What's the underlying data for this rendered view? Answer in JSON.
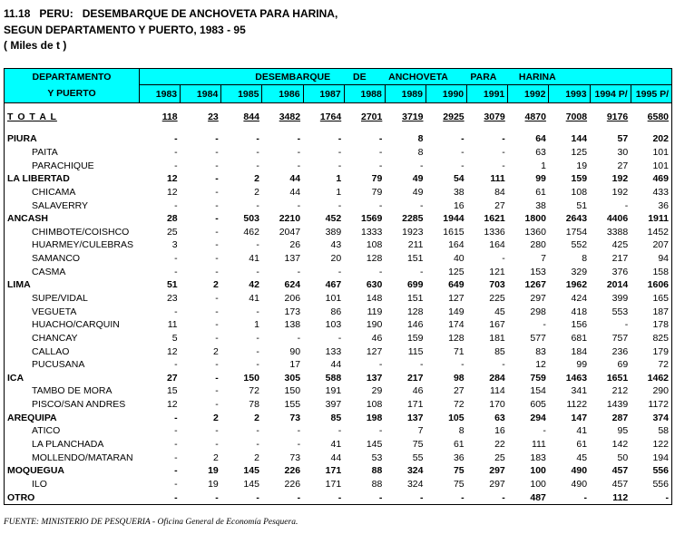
{
  "title": {
    "line1": "11.18   PERU:   DESEMBARQUE DE ANCHOVETA PARA HARINA,",
    "line2": "SEGUN DEPARTAMENTO Y PUERTO, 1983 - 95",
    "line3": "( Miles de t )"
  },
  "table": {
    "header": {
      "label_line1": "DEPARTAMENTO",
      "label_line2": "Y  PUERTO",
      "group": "DESEMBARQUE DE ANCHOVETA PARA HARINA",
      "years": [
        "1983",
        "1984",
        "1985",
        "1986",
        "1987",
        "1988",
        "1989",
        "1990",
        "1991",
        "1992",
        "1993",
        "1994 P/",
        "1995 P/"
      ]
    },
    "total": {
      "name": "T O T A L",
      "values": [
        118,
        23,
        844,
        3482,
        1764,
        2701,
        3719,
        2925,
        3079,
        4870,
        7008,
        9176,
        6580
      ]
    },
    "departments": [
      {
        "name": "PIURA",
        "values": [
          "-",
          "-",
          "-",
          "-",
          "-",
          "-",
          8,
          "-",
          "-",
          64,
          144,
          57,
          202
        ],
        "ports": [
          {
            "name": "PAITA",
            "values": [
              "-",
              "-",
              "-",
              "-",
              "-",
              "-",
              8,
              "-",
              "-",
              63,
              125,
              30,
              101
            ]
          },
          {
            "name": "PARACHIQUE",
            "values": [
              "-",
              "-",
              "-",
              "-",
              "-",
              "-",
              "-",
              "-",
              "-",
              1,
              19,
              27,
              101
            ]
          }
        ]
      },
      {
        "name": "LA LIBERTAD",
        "values": [
          12,
          "-",
          2,
          44,
          1,
          79,
          49,
          54,
          111,
          99,
          159,
          192,
          469
        ],
        "ports": [
          {
            "name": "CHICAMA",
            "values": [
              12,
              "-",
              2,
              44,
              1,
              79,
              49,
              38,
              84,
              61,
              108,
              192,
              433
            ]
          },
          {
            "name": "SALAVERRY",
            "values": [
              "-",
              "-",
              "-",
              "-",
              "-",
              "-",
              "-",
              16,
              27,
              38,
              51,
              "-",
              36
            ]
          }
        ]
      },
      {
        "name": "ANCASH",
        "values": [
          28,
          "-",
          503,
          2210,
          452,
          1569,
          2285,
          1944,
          1621,
          1800,
          2643,
          4406,
          1911
        ],
        "ports": [
          {
            "name": "CHIMBOTE/COISHCO",
            "values": [
              25,
              "-",
              462,
              2047,
              389,
              1333,
              1923,
              1615,
              1336,
              1360,
              1754,
              3388,
              1452
            ]
          },
          {
            "name": "HUARMEY/CULEBRAS",
            "values": [
              3,
              "-",
              "-",
              26,
              43,
              108,
              211,
              164,
              164,
              280,
              552,
              425,
              207
            ]
          },
          {
            "name": "SAMANCO",
            "values": [
              "-",
              "-",
              41,
              137,
              20,
              128,
              151,
              40,
              "-",
              7,
              8,
              217,
              94
            ]
          },
          {
            "name": "CASMA",
            "values": [
              "-",
              "-",
              "-",
              "-",
              "-",
              "-",
              "-",
              125,
              121,
              153,
              329,
              376,
              158
            ]
          }
        ]
      },
      {
        "name": "LIMA",
        "values": [
          51,
          2,
          42,
          624,
          467,
          630,
          699,
          649,
          703,
          1267,
          1962,
          2014,
          1606
        ],
        "ports": [
          {
            "name": "SUPE/VIDAL",
            "values": [
              23,
              "-",
              41,
              206,
              101,
              148,
              151,
              127,
              225,
              297,
              424,
              399,
              165
            ]
          },
          {
            "name": "VEGUETA",
            "values": [
              "-",
              "-",
              "-",
              173,
              86,
              119,
              128,
              149,
              45,
              298,
              418,
              553,
              187
            ]
          },
          {
            "name": "HUACHO/CARQUIN",
            "values": [
              11,
              "-",
              1,
              138,
              103,
              190,
              146,
              174,
              167,
              "-",
              156,
              "-",
              178
            ]
          },
          {
            "name": "CHANCAY",
            "values": [
              5,
              "-",
              "-",
              "-",
              "-",
              46,
              159,
              128,
              181,
              577,
              681,
              757,
              825
            ]
          },
          {
            "name": "CALLAO",
            "values": [
              12,
              2,
              "-",
              90,
              133,
              127,
              115,
              71,
              85,
              83,
              184,
              236,
              179
            ]
          },
          {
            "name": "PUCUSANA",
            "values": [
              "-",
              "-",
              "-",
              17,
              44,
              "-",
              "-",
              "-",
              "-",
              12,
              99,
              69,
              72
            ]
          }
        ]
      },
      {
        "name": "ICA",
        "values": [
          27,
          "-",
          150,
          305,
          588,
          137,
          217,
          98,
          284,
          759,
          1463,
          1651,
          1462
        ],
        "ports": [
          {
            "name": "TAMBO DE MORA",
            "values": [
              15,
              "-",
              72,
              150,
              191,
              29,
              46,
              27,
              114,
              154,
              341,
              212,
              290
            ]
          },
          {
            "name": "PISCO/SAN ANDRES",
            "values": [
              12,
              "-",
              78,
              155,
              397,
              108,
              171,
              72,
              170,
              605,
              1122,
              1439,
              1172
            ]
          }
        ]
      },
      {
        "name": "AREQUIPA",
        "values": [
          "-",
          2,
          2,
          73,
          85,
          198,
          137,
          105,
          63,
          294,
          147,
          287,
          374
        ],
        "ports": [
          {
            "name": "ATICO",
            "values": [
              "-",
              "-",
              "-",
              "-",
              "-",
              "-",
              7,
              8,
              16,
              "-",
              41,
              95,
              58
            ]
          },
          {
            "name": "LA PLANCHADA",
            "values": [
              "-",
              "-",
              "-",
              "-",
              41,
              145,
              75,
              61,
              22,
              111,
              61,
              142,
              122
            ]
          },
          {
            "name": "MOLLENDO/MATARAN",
            "values": [
              "-",
              2,
              2,
              73,
              44,
              53,
              55,
              36,
              25,
              183,
              45,
              50,
              194
            ]
          }
        ]
      },
      {
        "name": "MOQUEGUA",
        "values": [
          "-",
          19,
          145,
          226,
          171,
          88,
          324,
          75,
          297,
          100,
          490,
          457,
          556
        ],
        "ports": [
          {
            "name": "ILO",
            "values": [
              "-",
              19,
              145,
              226,
              171,
              88,
              324,
              75,
              297,
              100,
              490,
              457,
              556
            ]
          }
        ]
      },
      {
        "name": "OTRO",
        "values": [
          "-",
          "-",
          "-",
          "-",
          "-",
          "-",
          "-",
          "-",
          "-",
          487,
          "-",
          112,
          "-"
        ],
        "ports": []
      }
    ]
  },
  "footer": "FUENTE: MINISTERIO DE PESQUERIA - Oficina General de Economía Pesquera."
}
